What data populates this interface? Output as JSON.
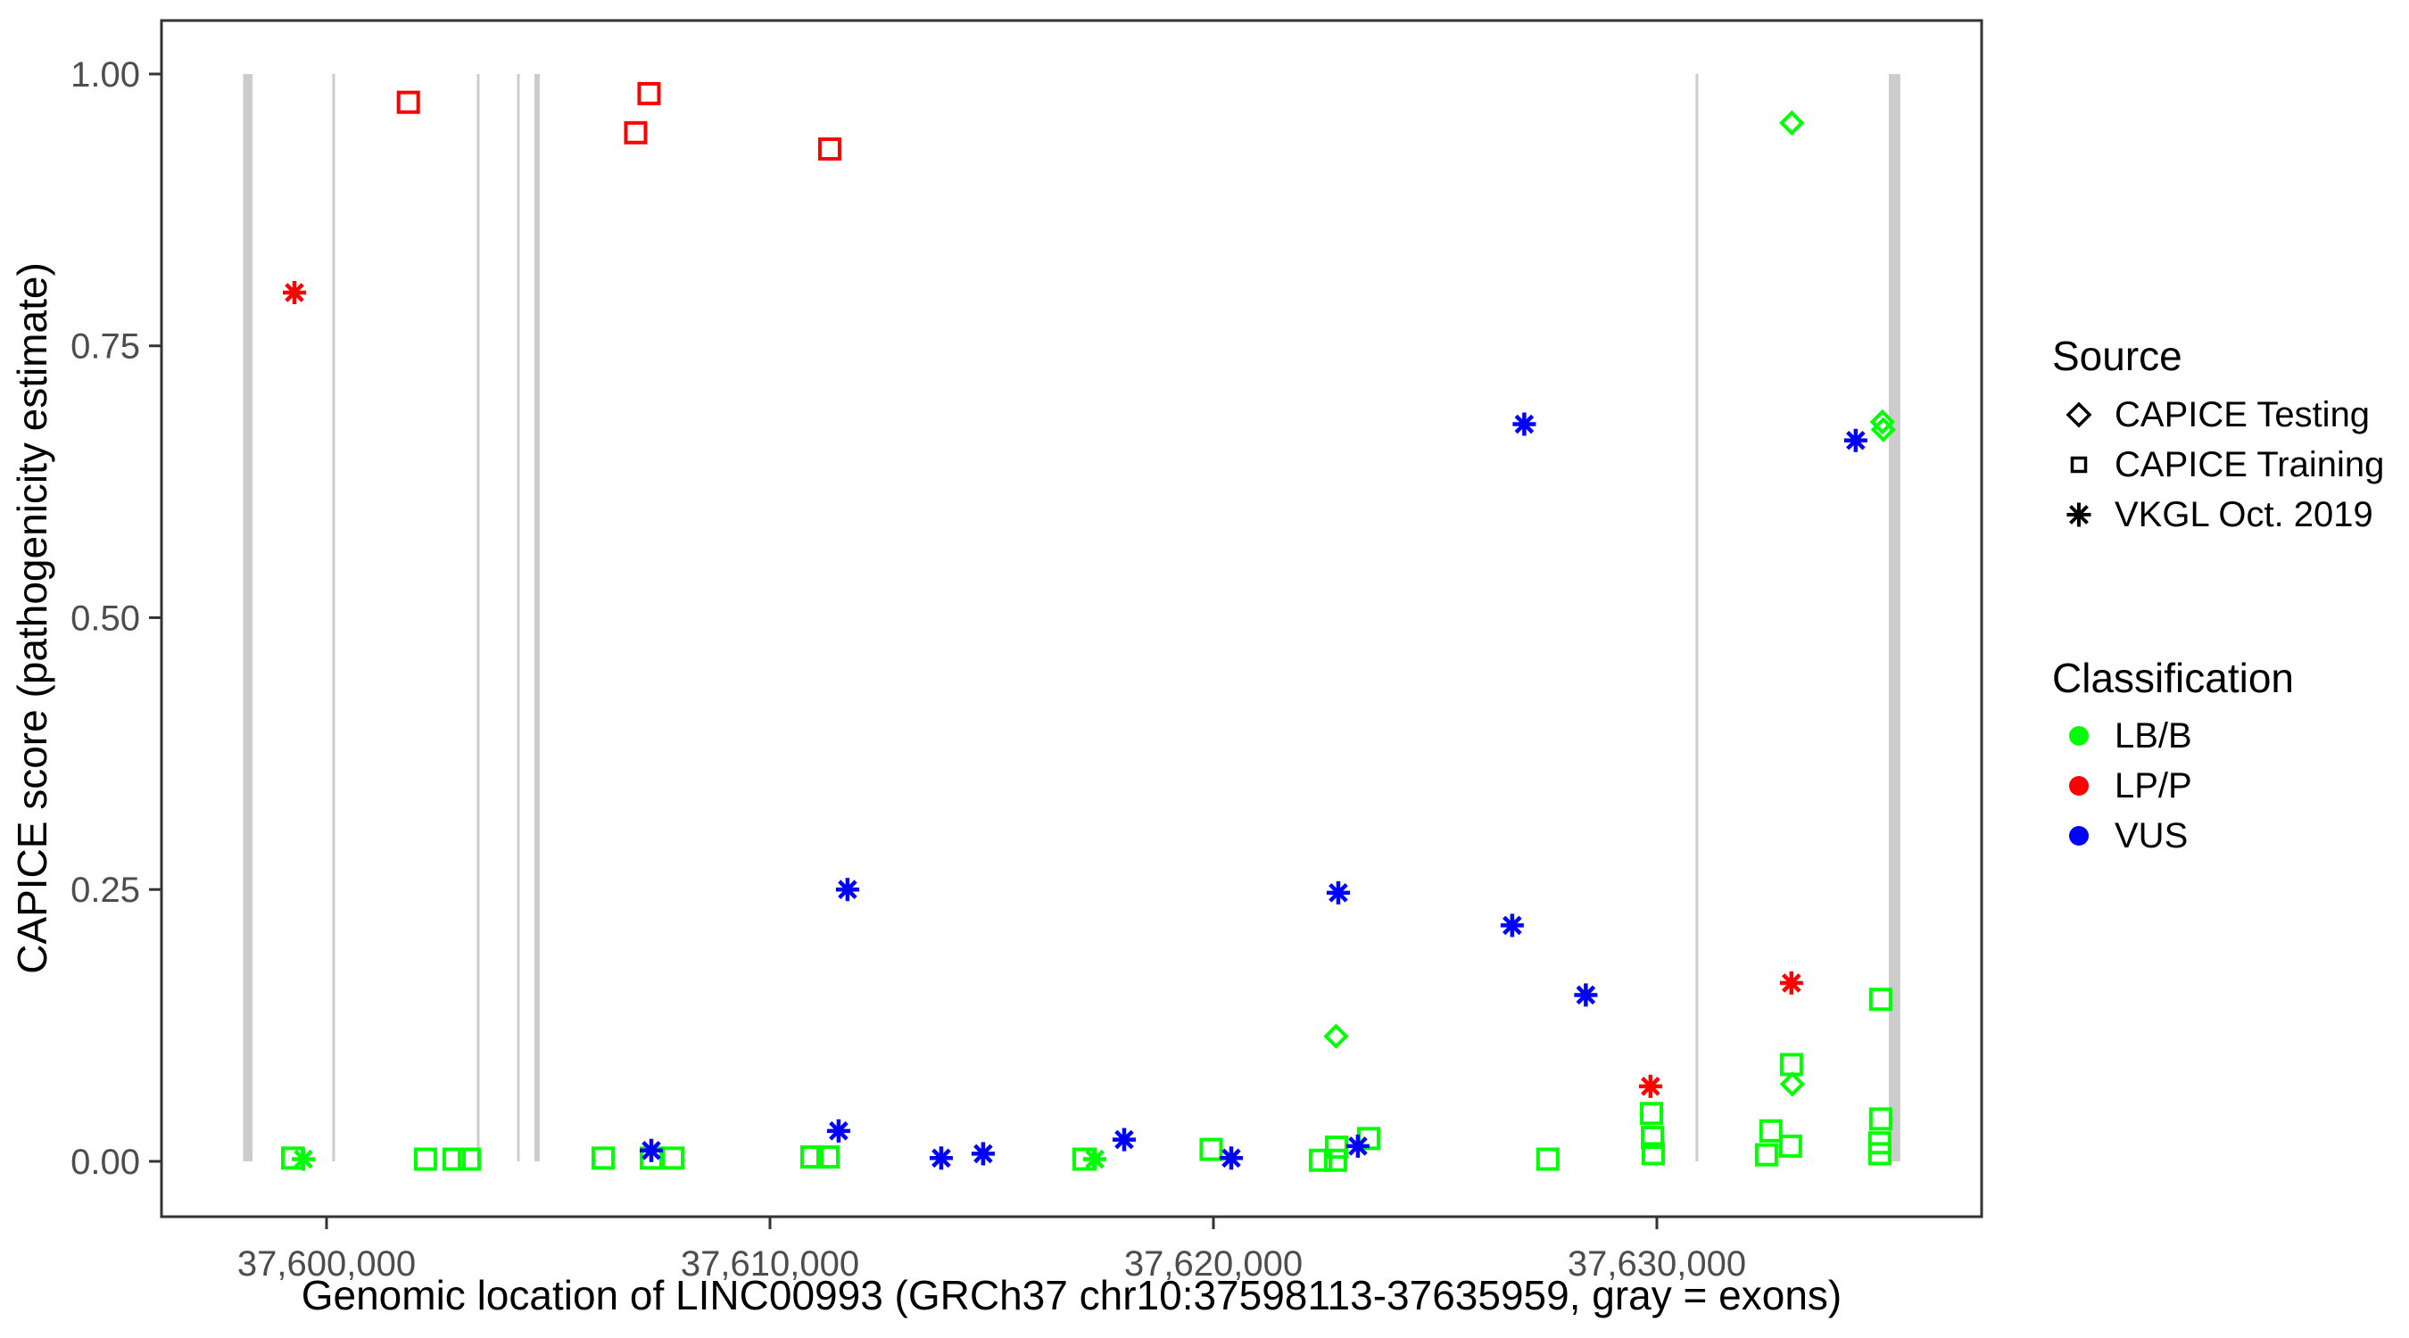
{
  "legend": {
    "source": {
      "title": "Source",
      "items": [
        {
          "label": "CAPICE Testing",
          "shape": "diamond"
        },
        {
          "label": "CAPICE Training",
          "shape": "square"
        },
        {
          "label": "VKGL Oct. 2019",
          "shape": "asterisk"
        }
      ]
    },
    "classification": {
      "title": "Classification",
      "items": [
        {
          "label": "LB/B",
          "color": "#00FF00"
        },
        {
          "label": "LP/P",
          "color": "#FF0000"
        },
        {
          "label": "VUS",
          "color": "#0000FF"
        }
      ]
    }
  },
  "chart_data": {
    "type": "scatter",
    "title": "",
    "xlabel": "Genomic location of LINC00993 (GRCh37 chr10:37598113-37635959, gray = exons)",
    "ylabel": "CAPICE score (pathogenicity estimate)",
    "x_range": [
      37596278,
      37637324
    ],
    "y_range": [
      -0.0509,
      1.0492
    ],
    "grid": "off",
    "legend_position": "right",
    "x_ticks": [
      {
        "value": 37600000,
        "label": "37,600,000"
      },
      {
        "value": 37610000,
        "label": "37,610,000"
      },
      {
        "value": 37620000,
        "label": "37,620,000"
      },
      {
        "value": 37630000,
        "label": "37,630,000"
      }
    ],
    "y_ticks": [
      {
        "value": 0.0,
        "label": "0.00"
      },
      {
        "value": 0.25,
        "label": "0.25"
      },
      {
        "value": 0.5,
        "label": "0.50"
      },
      {
        "value": 0.75,
        "label": "0.75"
      },
      {
        "value": 1.0,
        "label": "1.00"
      }
    ],
    "colors": {
      "LB/B": "#00FF00",
      "LP/P": "#FF0000",
      "VUS": "#0000FF",
      "exon": "#CCCCCC",
      "axis": "#333333",
      "tick_text": "#4d4d4d"
    },
    "shapes": {
      "CAPICE Testing": "diamond",
      "CAPICE Training": "square",
      "VKGL Oct. 2019": "asterisk"
    },
    "exons": [
      {
        "start": 37598120,
        "end": 37598330
      },
      {
        "start": 37600130,
        "end": 37600190
      },
      {
        "start": 37603390,
        "end": 37603450
      },
      {
        "start": 37604295,
        "end": 37604355
      },
      {
        "start": 37604688,
        "end": 37604808
      },
      {
        "start": 37630873,
        "end": 37630933
      },
      {
        "start": 37635230,
        "end": 37635490
      }
    ],
    "points": [
      {
        "x": 37599235,
        "y": 0.003,
        "source": "CAPICE Training",
        "classification": "LB/B"
      },
      {
        "x": 37602233,
        "y": 0.002,
        "source": "CAPICE Training",
        "classification": "LB/B"
      },
      {
        "x": 37602877,
        "y": 0.002,
        "source": "CAPICE Training",
        "classification": "LB/B"
      },
      {
        "x": 37603219,
        "y": 0.002,
        "source": "CAPICE Training",
        "classification": "LB/B"
      },
      {
        "x": 37606237,
        "y": 0.003,
        "source": "CAPICE Training",
        "classification": "LB/B"
      },
      {
        "x": 37607324,
        "y": 0.003,
        "source": "CAPICE Training",
        "classification": "LB/B"
      },
      {
        "x": 37607807,
        "y": 0.003,
        "source": "CAPICE Training",
        "classification": "LB/B"
      },
      {
        "x": 37610945,
        "y": 0.004,
        "source": "CAPICE Training",
        "classification": "LB/B"
      },
      {
        "x": 37611307,
        "y": 0.004,
        "source": "CAPICE Training",
        "classification": "LB/B"
      },
      {
        "x": 37617082,
        "y": 0.002,
        "source": "CAPICE Training",
        "classification": "LB/B"
      },
      {
        "x": 37619949,
        "y": 0.011,
        "source": "CAPICE Training",
        "classification": "LB/B"
      },
      {
        "x": 37622413,
        "y": 0.001,
        "source": "CAPICE Training",
        "classification": "LB/B"
      },
      {
        "x": 37622755,
        "y": 0.001,
        "source": "CAPICE Training",
        "classification": "LB/B"
      },
      {
        "x": 37622775,
        "y": 0.013,
        "source": "CAPICE Training",
        "classification": "LB/B"
      },
      {
        "x": 37623500,
        "y": 0.021,
        "source": "CAPICE Training",
        "classification": "LB/B"
      },
      {
        "x": 37627543,
        "y": 0.002,
        "source": "CAPICE Training",
        "classification": "LB/B"
      },
      {
        "x": 37629880,
        "y": 0.044,
        "source": "CAPICE Training",
        "classification": "LB/B"
      },
      {
        "x": 37629900,
        "y": 0.022,
        "source": "CAPICE Training",
        "classification": "LB/B"
      },
      {
        "x": 37629920,
        "y": 0.007,
        "source": "CAPICE Training",
        "classification": "LB/B"
      },
      {
        "x": 37632472,
        "y": 0.006,
        "source": "CAPICE Training",
        "classification": "LB/B"
      },
      {
        "x": 37632572,
        "y": 0.028,
        "source": "CAPICE Training",
        "classification": "LB/B"
      },
      {
        "x": 37633015,
        "y": 0.014,
        "source": "CAPICE Training",
        "classification": "LB/B"
      },
      {
        "x": 37633035,
        "y": 0.089,
        "source": "CAPICE Training",
        "classification": "LB/B"
      },
      {
        "x": 37635047,
        "y": 0.149,
        "source": "CAPICE Training",
        "classification": "LB/B"
      },
      {
        "x": 37635047,
        "y": 0.039,
        "source": "CAPICE Training",
        "classification": "LB/B"
      },
      {
        "x": 37635027,
        "y": 0.017,
        "source": "CAPICE Training",
        "classification": "LB/B"
      },
      {
        "x": 37635027,
        "y": 0.007,
        "source": "CAPICE Training",
        "classification": "LB/B"
      },
      {
        "x": 37601845,
        "y": 0.974,
        "source": "CAPICE Training",
        "classification": "LP/P"
      },
      {
        "x": 37606971,
        "y": 0.946,
        "source": "CAPICE Training",
        "classification": "LP/P"
      },
      {
        "x": 37607273,
        "y": 0.982,
        "source": "CAPICE Training",
        "classification": "LP/P"
      },
      {
        "x": 37611347,
        "y": 0.931,
        "source": "CAPICE Training",
        "classification": "LP/P"
      },
      {
        "x": 37622765,
        "y": 0.115,
        "source": "CAPICE Testing",
        "classification": "LB/B"
      },
      {
        "x": 37633043,
        "y": 0.955,
        "source": "CAPICE Testing",
        "classification": "LB/B"
      },
      {
        "x": 37633055,
        "y": 0.071,
        "source": "CAPICE Testing",
        "classification": "LB/B"
      },
      {
        "x": 37635087,
        "y": 0.68,
        "source": "CAPICE Testing",
        "classification": "LB/B"
      },
      {
        "x": 37635107,
        "y": 0.673,
        "source": "CAPICE Testing",
        "classification": "LB/B"
      },
      {
        "x": 37599477,
        "y": 0.002,
        "source": "VKGL Oct. 2019",
        "classification": "LB/B"
      },
      {
        "x": 37617324,
        "y": 0.002,
        "source": "VKGL Oct. 2019",
        "classification": "LB/B"
      },
      {
        "x": 37599276,
        "y": 0.799,
        "source": "VKGL Oct. 2019",
        "classification": "LP/P"
      },
      {
        "x": 37629857,
        "y": 0.069,
        "source": "VKGL Oct. 2019",
        "classification": "LP/P"
      },
      {
        "x": 37633035,
        "y": 0.164,
        "source": "VKGL Oct. 2019",
        "classification": "LP/P"
      },
      {
        "x": 37607324,
        "y": 0.01,
        "source": "VKGL Oct. 2019",
        "classification": "VUS"
      },
      {
        "x": 37611548,
        "y": 0.028,
        "source": "VKGL Oct. 2019",
        "classification": "VUS"
      },
      {
        "x": 37611749,
        "y": 0.25,
        "source": "VKGL Oct. 2019",
        "classification": "VUS"
      },
      {
        "x": 37613862,
        "y": 0.003,
        "source": "VKGL Oct. 2019",
        "classification": "VUS"
      },
      {
        "x": 37614807,
        "y": 0.007,
        "source": "VKGL Oct. 2019",
        "classification": "VUS"
      },
      {
        "x": 37617988,
        "y": 0.02,
        "source": "VKGL Oct. 2019",
        "classification": "VUS"
      },
      {
        "x": 37620402,
        "y": 0.003,
        "source": "VKGL Oct. 2019",
        "classification": "VUS"
      },
      {
        "x": 37623258,
        "y": 0.014,
        "source": "VKGL Oct. 2019",
        "classification": "VUS"
      },
      {
        "x": 37622816,
        "y": 0.247,
        "source": "VKGL Oct. 2019",
        "classification": "VUS"
      },
      {
        "x": 37626738,
        "y": 0.217,
        "source": "VKGL Oct. 2019",
        "classification": "VUS"
      },
      {
        "x": 37627010,
        "y": 0.678,
        "source": "VKGL Oct. 2019",
        "classification": "VUS"
      },
      {
        "x": 37628398,
        "y": 0.153,
        "source": "VKGL Oct. 2019",
        "classification": "VUS"
      },
      {
        "x": 37634484,
        "y": 0.663,
        "source": "VKGL Oct. 2019",
        "classification": "VUS"
      }
    ]
  }
}
